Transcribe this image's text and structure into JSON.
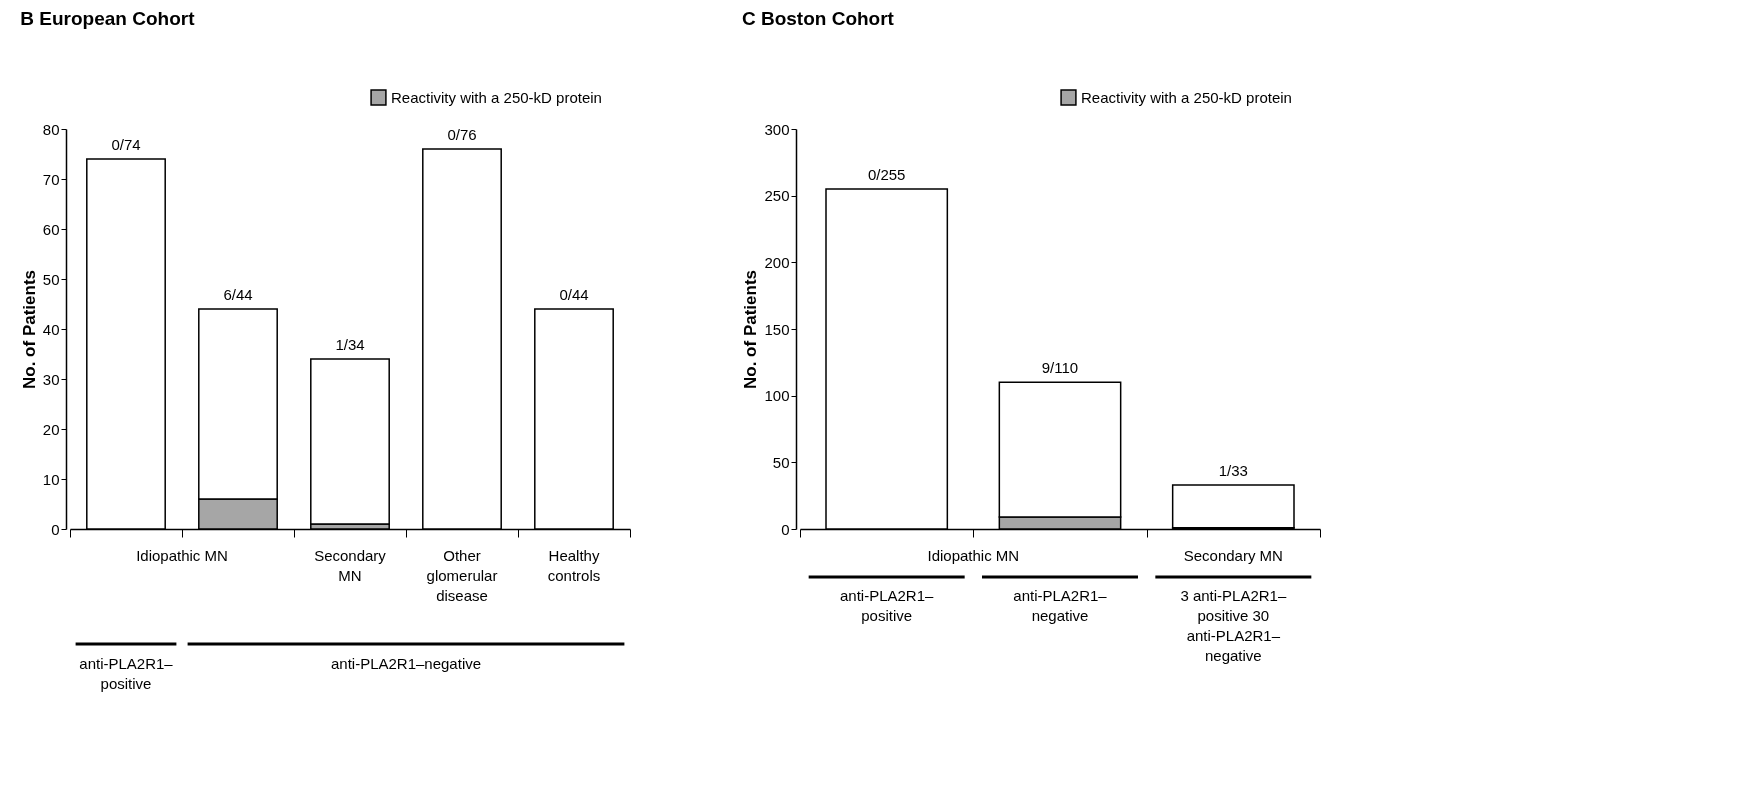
{
  "chart_data": [
    {
      "type": "bar",
      "title": "B European Cohort",
      "ylabel": "No. of Patients",
      "categories": [
        null,
        null,
        "Secondary MN",
        "Other glomerular disease",
        "Healthy controls"
      ],
      "stacked": true,
      "series": [
        {
          "name": "Reactivity with a 250-kD protein",
          "color": "#a6a6a6",
          "values": [
            0,
            6,
            1,
            0,
            0
          ]
        },
        {
          "color": "#ffffff",
          "values": [
            74,
            38,
            33,
            76,
            44
          ]
        }
      ],
      "totals": [
        "0/74",
        "6/44",
        "1/34",
        "0/76",
        "0/44"
      ],
      "ylim": [
        0,
        80
      ],
      "yticks": [
        0,
        10,
        20,
        30,
        40,
        50,
        60,
        70,
        80
      ],
      "grid": false,
      "legend": "top right",
      "annotations": [
        "Idiopathic MN",
        "anti-PLA2R1–positive",
        "anti-PLA2R1–negative"
      ]
    },
    {
      "type": "bar",
      "title": "C Boston Cohort",
      "ylabel": "No. of Patients",
      "categories": [
        null,
        null,
        "Secondary MN"
      ],
      "stacked": true,
      "series": [
        {
          "name": "Reactivity with a 250-kD protein",
          "color": "#a6a6a6",
          "values": [
            0,
            9,
            1
          ]
        },
        {
          "color": "#ffffff",
          "values": [
            255,
            101,
            32
          ]
        }
      ],
      "totals": [
        "0/255",
        "9/110",
        "1/33"
      ],
      "ylim": [
        0,
        300
      ],
      "yticks": [
        0,
        50,
        100,
        150,
        200,
        250,
        300
      ],
      "grid": false,
      "legend": "top right",
      "annotations": [
        "Idiopathic MN",
        "anti-PLA2R1–positive",
        "anti-PLA2R1–negative",
        "3 anti-PLA2R1–positive 30 anti-PLA2R1–negative"
      ]
    }
  ]
}
